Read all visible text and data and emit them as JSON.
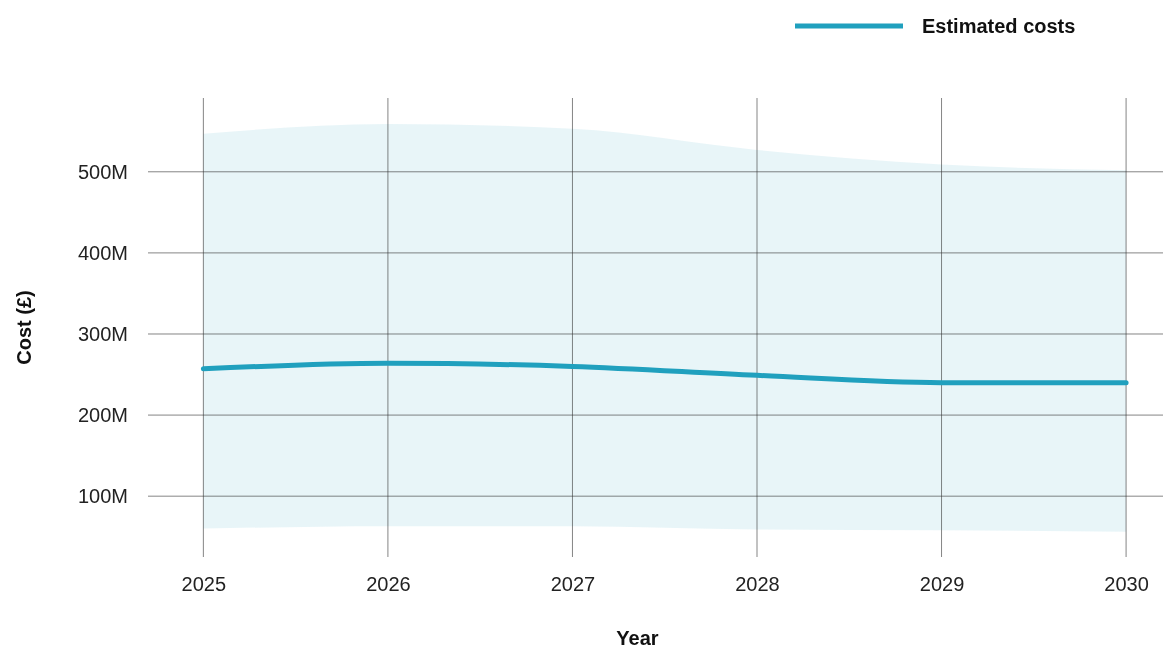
{
  "chart_data": {
    "type": "line",
    "xlabel": "Year",
    "ylabel": "Cost (£)",
    "x": [
      2025,
      2026,
      2027,
      2028,
      2029,
      2030
    ],
    "series": [
      {
        "name": "Estimated costs",
        "color": "#20a0be",
        "values": [
          257000000,
          264000000,
          260000000,
          249000000,
          240000000,
          240000000
        ],
        "lower": [
          60000000,
          63000000,
          63000000,
          59000000,
          58000000,
          56000000
        ],
        "upper": [
          547000000,
          559000000,
          553000000,
          527000000,
          509000000,
          502000000
        ]
      }
    ],
    "xlim": [
      2024.7,
      2030.2
    ],
    "ylim": [
      25000000,
      591000000
    ],
    "xticks": [
      2025,
      2026,
      2027,
      2028,
      2029,
      2030
    ],
    "yticks": [
      {
        "value": 100000000,
        "label": "100M"
      },
      {
        "value": 200000000,
        "label": "200M"
      },
      {
        "value": 300000000,
        "label": "300M"
      },
      {
        "value": 400000000,
        "label": "400M"
      },
      {
        "value": 500000000,
        "label": "500M"
      }
    ],
    "grid": true,
    "legend": "top right",
    "marker": "none",
    "line_style": "solid"
  }
}
